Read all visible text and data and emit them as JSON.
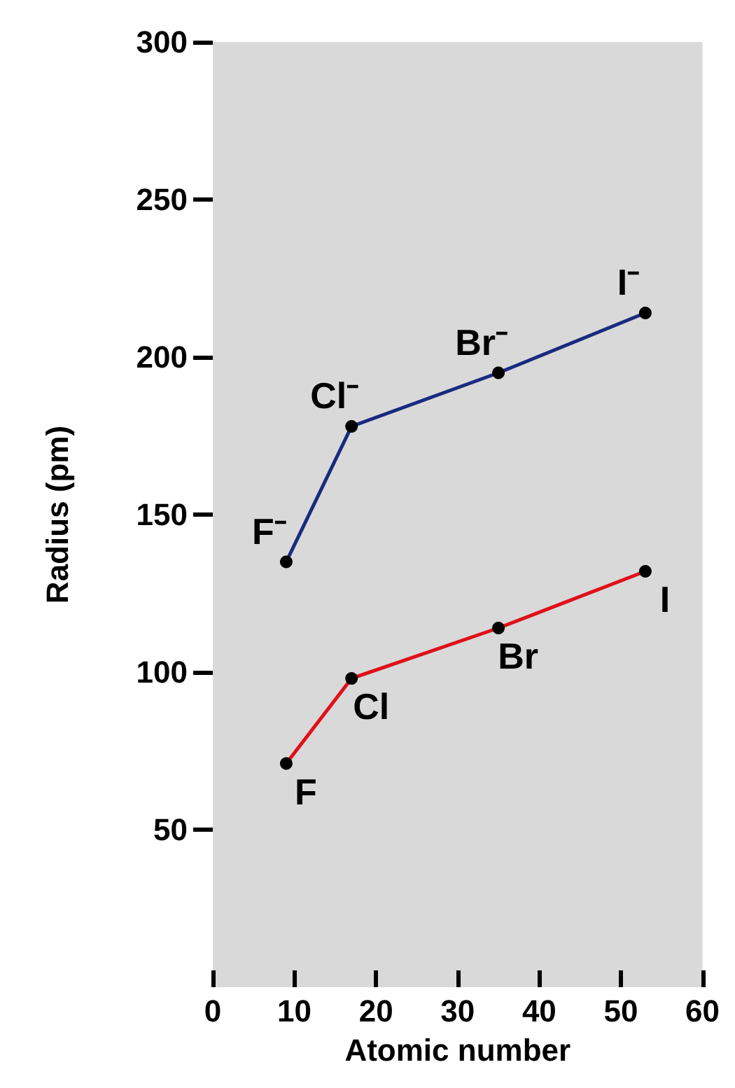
{
  "chart_data": {
    "type": "line",
    "xlabel": "Atomic number",
    "ylabel": "Radius (pm)",
    "x": [
      9,
      17,
      35,
      53
    ],
    "series": [
      {
        "color": "#1a2a80",
        "values": [
          135,
          178,
          195,
          214
        ]
      },
      {
        "color": "#e0101a",
        "values": [
          71,
          98,
          114,
          132
        ]
      }
    ],
    "xlim": [
      0,
      60
    ],
    "xticks": [
      0,
      10,
      20,
      30,
      40,
      50,
      60
    ],
    "ylim": [
      0,
      300
    ],
    "yticks": [
      50,
      100,
      150,
      200,
      250,
      300
    ],
    "grid": false,
    "marker": "circle",
    "line_style": "solid",
    "annotations": [
      {
        "text": "F⁻",
        "x": 9,
        "y": 135
      },
      {
        "text": "Cl⁻",
        "x": 17,
        "y": 178
      },
      {
        "text": "Br⁻",
        "x": 35,
        "y": 195
      },
      {
        "text": "I⁻",
        "x": 53,
        "y": 214
      },
      {
        "text": "F",
        "x": 9,
        "y": 71
      },
      {
        "text": "Cl",
        "x": 17,
        "y": 98
      },
      {
        "text": "Br",
        "x": 35,
        "y": 114
      },
      {
        "text": "I",
        "x": 53,
        "y": 132
      }
    ]
  }
}
